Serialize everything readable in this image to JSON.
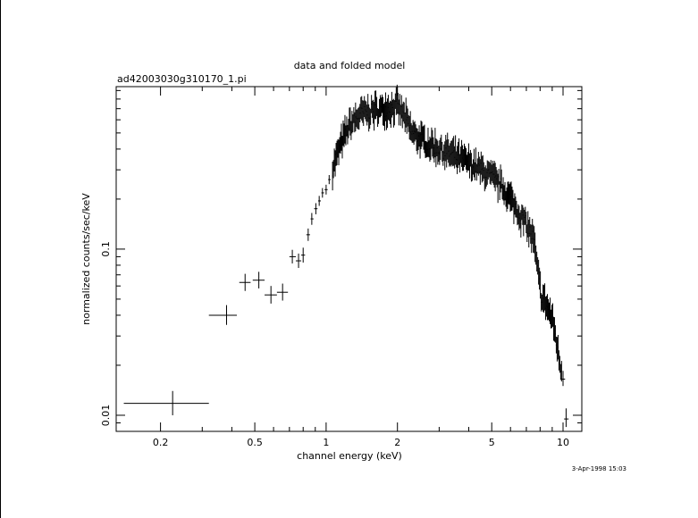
{
  "chart_data": {
    "type": "scatter",
    "title": "data and folded model",
    "subtitle": "ad42003030g310170_1.pi",
    "xlabel": "channel energy (keV)",
    "ylabel": "normalized counts/sec/keV",
    "footer": "3-Apr-1998 15:03",
    "x_scale": "log",
    "y_scale": "log",
    "xlim": [
      0.13,
      12
    ],
    "ylim": [
      0.008,
      0.95
    ],
    "x_ticks": [
      {
        "value": 0.2,
        "label": "0.2"
      },
      {
        "value": 0.5,
        "label": "0.5"
      },
      {
        "value": 1,
        "label": "1"
      },
      {
        "value": 2,
        "label": "2"
      },
      {
        "value": 5,
        "label": "5"
      },
      {
        "value": 10,
        "label": "10"
      }
    ],
    "y_ticks": [
      {
        "value": 0.01,
        "label": "0.01"
      },
      {
        "value": 0.1,
        "label": "0.1"
      }
    ],
    "grid": false,
    "legend": "none",
    "color": "#000000",
    "points": [
      {
        "x": 0.225,
        "y": 0.0118,
        "xlo": 0.14,
        "xhi": 0.32,
        "ylo": 0.01,
        "yhi": 0.014
      },
      {
        "x": 0.38,
        "y": 0.04,
        "xlo": 0.32,
        "xhi": 0.42,
        "ylo": 0.035,
        "yhi": 0.046
      },
      {
        "x": 0.455,
        "y": 0.063,
        "xlo": 0.43,
        "xhi": 0.48,
        "ylo": 0.056,
        "yhi": 0.071
      },
      {
        "x": 0.52,
        "y": 0.065,
        "xlo": 0.49,
        "xhi": 0.55,
        "ylo": 0.058,
        "yhi": 0.073
      },
      {
        "x": 0.585,
        "y": 0.053,
        "xlo": 0.55,
        "xhi": 0.62,
        "ylo": 0.047,
        "yhi": 0.06
      },
      {
        "x": 0.655,
        "y": 0.055,
        "xlo": 0.62,
        "xhi": 0.69,
        "ylo": 0.049,
        "yhi": 0.062
      },
      {
        "x": 0.72,
        "y": 0.09,
        "xlo": 0.7,
        "xhi": 0.745,
        "ylo": 0.082,
        "yhi": 0.099
      },
      {
        "x": 0.765,
        "y": 0.085,
        "xlo": 0.745,
        "xhi": 0.785,
        "ylo": 0.077,
        "yhi": 0.094
      },
      {
        "x": 0.8,
        "y": 0.092,
        "xlo": 0.785,
        "xhi": 0.815,
        "ylo": 0.083,
        "yhi": 0.102
      },
      {
        "x": 0.84,
        "y": 0.122,
        "xlo": 0.825,
        "xhi": 0.855,
        "ylo": 0.112,
        "yhi": 0.133
      },
      {
        "x": 0.87,
        "y": 0.152,
        "xlo": 0.86,
        "xhi": 0.885,
        "ylo": 0.14,
        "yhi": 0.165
      },
      {
        "x": 0.905,
        "y": 0.175,
        "xlo": 0.89,
        "xhi": 0.92,
        "ylo": 0.162,
        "yhi": 0.189
      },
      {
        "x": 0.935,
        "y": 0.195,
        "xlo": 0.925,
        "xhi": 0.95,
        "ylo": 0.182,
        "yhi": 0.209
      },
      {
        "x": 0.965,
        "y": 0.218,
        "xlo": 0.955,
        "xhi": 0.98,
        "ylo": 0.204,
        "yhi": 0.233
      },
      {
        "x": 1.0,
        "y": 0.228,
        "xlo": 0.985,
        "xhi": 1.015,
        "ylo": 0.213,
        "yhi": 0.244
      },
      {
        "x": 1.03,
        "y": 0.262,
        "xlo": 1.02,
        "xhi": 1.045,
        "ylo": 0.246,
        "yhi": 0.279
      },
      {
        "x": 10.0,
        "y": 0.0165,
        "xlo": 9.8,
        "xhi": 10.2,
        "ylo": 0.015,
        "yhi": 0.0185
      },
      {
        "x": 10.3,
        "y": 0.0095,
        "xlo": 10.1,
        "xhi": 10.55,
        "ylo": 0.0085,
        "yhi": 0.011
      }
    ],
    "dense_series": {
      "note": "",
      "x_start": 1.06,
      "x_end": 9.9,
      "profile": [
        {
          "x": 1.06,
          "y": 0.3
        },
        {
          "x": 1.15,
          "y": 0.42
        },
        {
          "x": 1.25,
          "y": 0.55
        },
        {
          "x": 1.4,
          "y": 0.65
        },
        {
          "x": 1.6,
          "y": 0.68
        },
        {
          "x": 1.8,
          "y": 0.7
        },
        {
          "x": 2.0,
          "y": 0.72
        },
        {
          "x": 2.15,
          "y": 0.62
        },
        {
          "x": 2.3,
          "y": 0.5
        },
        {
          "x": 2.6,
          "y": 0.44
        },
        {
          "x": 3.0,
          "y": 0.4
        },
        {
          "x": 3.5,
          "y": 0.36
        },
        {
          "x": 4.0,
          "y": 0.33
        },
        {
          "x": 4.5,
          "y": 0.3
        },
        {
          "x": 5.0,
          "y": 0.27
        },
        {
          "x": 5.5,
          "y": 0.24
        },
        {
          "x": 6.0,
          "y": 0.2
        },
        {
          "x": 6.5,
          "y": 0.165
        },
        {
          "x": 7.0,
          "y": 0.14
        },
        {
          "x": 7.5,
          "y": 0.115
        },
        {
          "x": 7.8,
          "y": 0.075
        },
        {
          "x": 8.1,
          "y": 0.052
        },
        {
          "x": 8.5,
          "y": 0.046
        },
        {
          "x": 9.0,
          "y": 0.038
        },
        {
          "x": 9.3,
          "y": 0.03
        },
        {
          "x": 9.6,
          "y": 0.022
        },
        {
          "x": 9.9,
          "y": 0.018
        }
      ]
    }
  }
}
